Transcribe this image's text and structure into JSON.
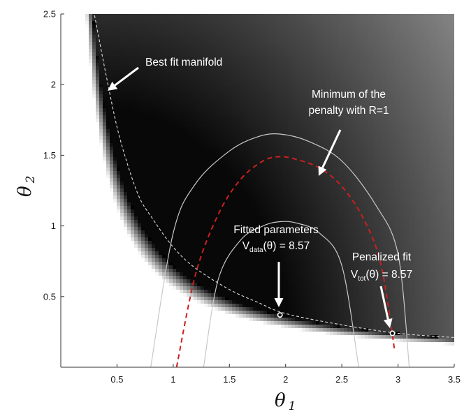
{
  "chart_data": {
    "type": "heatmap",
    "title": "",
    "xlabel": "θ",
    "xlabel_sub": "1",
    "ylabel": "θ",
    "ylabel_sub": "2",
    "xlim": [
      0.0,
      3.5
    ],
    "ylim": [
      0.0,
      2.5
    ],
    "x_ticks": [
      0.5,
      1,
      1.5,
      2,
      2.5,
      3,
      3.5
    ],
    "x_tick_labels": [
      "0.5",
      "1",
      "1.5",
      "2",
      "2.5",
      "3",
      "3.5"
    ],
    "y_ticks": [
      0.5,
      1,
      1.5,
      2,
      2.5
    ],
    "y_tick_labels": [
      "0.5",
      "1",
      "1.5",
      "2",
      "2.5"
    ],
    "colormap": "grayscale",
    "grid": false,
    "series": [
      {
        "role": "best-fit-manifold",
        "style": "dashed",
        "color": "#dddddd",
        "x": [
          0.3,
          0.4,
          0.5,
          0.6,
          0.7,
          0.8,
          1.0,
          1.2,
          1.5,
          1.75,
          2.0,
          2.5,
          3.0,
          3.5
        ],
        "y": [
          2.49,
          2.08,
          1.7,
          1.42,
          1.2,
          1.07,
          0.85,
          0.7,
          0.55,
          0.46,
          0.38,
          0.3,
          0.24,
          0.21
        ]
      },
      {
        "role": "penalty-minimum",
        "style": "dashed",
        "color": "#cc1f1f",
        "x": [
          1.03,
          1.2,
          1.4,
          1.6,
          1.8,
          1.95,
          2.1,
          2.3,
          2.5,
          2.7,
          2.85,
          2.97
        ],
        "y": [
          0.0,
          0.66,
          1.08,
          1.33,
          1.46,
          1.49,
          1.47,
          1.41,
          1.28,
          1.04,
          0.72,
          0.12
        ]
      },
      {
        "role": "contour-inner",
        "style": "solid",
        "color": "#c8c8c8",
        "x": [
          1.27,
          1.4,
          1.6,
          1.8,
          1.95,
          2.1,
          2.3,
          2.5,
          2.65
        ],
        "y": [
          0.0,
          0.62,
          0.9,
          1.0,
          1.03,
          1.02,
          0.95,
          0.72,
          0.0
        ]
      },
      {
        "role": "contour-outer",
        "style": "solid",
        "color": "#c8c8c8",
        "x": [
          0.8,
          1.0,
          1.2,
          1.5,
          1.75,
          1.95,
          2.2,
          2.5,
          2.8,
          3.0,
          3.1
        ],
        "y": [
          0.0,
          0.95,
          1.3,
          1.53,
          1.63,
          1.65,
          1.6,
          1.46,
          1.15,
          0.8,
          0.0
        ]
      }
    ],
    "points": [
      {
        "role": "fitted-parameters",
        "x": 1.95,
        "y": 0.37
      },
      {
        "role": "penalized-fit",
        "x": 2.95,
        "y": 0.24
      }
    ],
    "annotations": [
      {
        "role": "best-fit-manifold",
        "text": "Best fit manifold"
      },
      {
        "role": "penalty-minimum",
        "lines": [
          "Minimum of the",
          "penalty with R=1"
        ]
      },
      {
        "role": "fitted-parameters",
        "line1": "Fitted parameters",
        "v": "V",
        "sub": "data",
        "rest": "(θ) = 8.57"
      },
      {
        "role": "penalized-fit",
        "line1": "Penalized fit",
        "v": "V",
        "sub": "tot",
        "rest": "(θ) = 8.57"
      }
    ]
  }
}
